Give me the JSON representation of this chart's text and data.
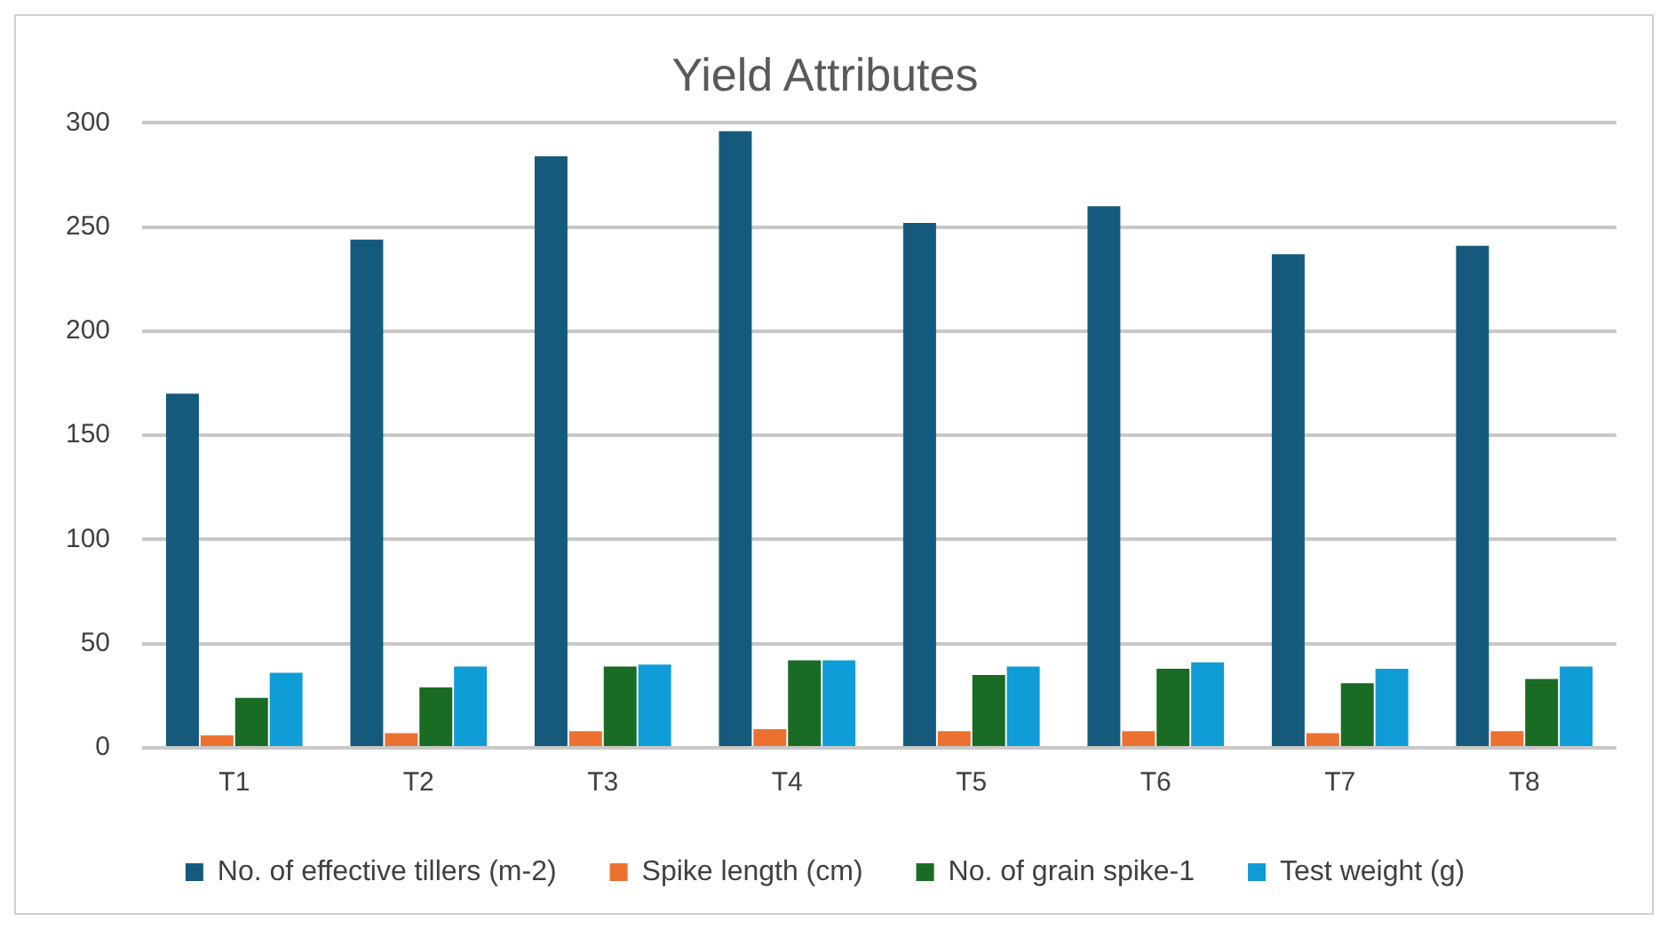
{
  "chart_data": {
    "type": "bar",
    "title": "Yield Attributes",
    "categories": [
      "T1",
      "T2",
      "T3",
      "T4",
      "T5",
      "T6",
      "T7",
      "T8"
    ],
    "series": [
      {
        "name": "No. of effective tillers (m-2)",
        "color": "#155a7c",
        "values": [
          170,
          244,
          284,
          296,
          252,
          260,
          237,
          241
        ]
      },
      {
        "name": "Spike length (cm)",
        "color": "#ec7030",
        "values": [
          6,
          7,
          8,
          9,
          8,
          8,
          7,
          8
        ]
      },
      {
        "name": "No. of grain spike-1",
        "color": "#1a6b24",
        "values": [
          24,
          29,
          39,
          42,
          35,
          38,
          31,
          33
        ]
      },
      {
        "name": "Test weight (g)",
        "color": "#109cd6",
        "values": [
          36,
          39,
          40,
          42,
          39,
          41,
          38,
          39
        ]
      }
    ],
    "ylim": [
      0,
      300
    ],
    "yticks": [
      0,
      50,
      100,
      150,
      200,
      250,
      300
    ],
    "grid": "y",
    "legend": "bottom"
  }
}
